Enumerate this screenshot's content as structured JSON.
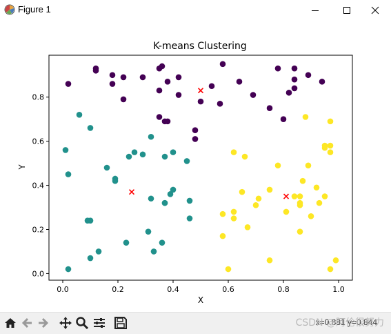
{
  "window": {
    "title": "Figure 1",
    "icon": "matplotlib-icon"
  },
  "titlebar_buttons": [
    "minimize-icon",
    "maximize-icon",
    "close-icon"
  ],
  "toolbar": {
    "buttons": [
      "home-icon",
      "back-icon",
      "forward-icon",
      "pan-icon",
      "zoom-icon",
      "configure-subplots-icon",
      "save-icon"
    ],
    "coordinate_readout": "x=0.881 y=0.844",
    "watermark": "CSDN @阿伦很努力"
  },
  "colors": {
    "purple": "#440154",
    "teal": "#21918c",
    "yellow": "#fde725",
    "centroid": "#ff0000"
  },
  "chart_data": {
    "type": "scatter",
    "title": "K-means Clustering",
    "xlabel": "X",
    "ylabel": "Y",
    "xlim": [
      -0.05,
      1.05
    ],
    "ylim": [
      -0.03,
      0.99
    ],
    "xticks": [
      "0.0",
      "0.2",
      "0.4",
      "0.6",
      "0.8",
      "1.0"
    ],
    "yticks": [
      "0.0",
      "0.2",
      "0.4",
      "0.6",
      "0.8"
    ],
    "grid": false,
    "series": [
      {
        "color": "#440154",
        "points": [
          [
            0.02,
            0.86
          ],
          [
            0.12,
            0.93
          ],
          [
            0.12,
            0.92
          ],
          [
            0.18,
            0.9
          ],
          [
            0.22,
            0.89
          ],
          [
            0.18,
            0.86
          ],
          [
            0.22,
            0.79
          ],
          [
            0.29,
            0.89
          ],
          [
            0.35,
            0.93
          ],
          [
            0.36,
            0.94
          ],
          [
            0.42,
            0.89
          ],
          [
            0.38,
            0.87
          ],
          [
            0.35,
            0.83
          ],
          [
            0.42,
            0.81
          ],
          [
            0.35,
            0.71
          ],
          [
            0.37,
            0.69
          ],
          [
            0.38,
            0.69
          ],
          [
            0.48,
            0.65
          ],
          [
            0.48,
            0.61
          ],
          [
            0.5,
            0.78
          ],
          [
            0.54,
            0.85
          ],
          [
            0.57,
            0.77
          ],
          [
            0.58,
            0.95
          ],
          [
            0.64,
            0.87
          ],
          [
            0.69,
            0.81
          ],
          [
            0.75,
            0.75
          ],
          [
            0.78,
            0.93
          ],
          [
            0.8,
            0.7
          ],
          [
            0.82,
            0.82
          ],
          [
            0.84,
            0.93
          ],
          [
            0.84,
            0.88
          ],
          [
            0.84,
            0.84
          ],
          [
            0.89,
            0.9
          ],
          [
            0.94,
            0.87
          ]
        ]
      },
      {
        "color": "#21918c",
        "points": [
          [
            0.01,
            0.56
          ],
          [
            0.06,
            0.72
          ],
          [
            0.1,
            0.66
          ],
          [
            0.02,
            0.45
          ],
          [
            0.16,
            0.48
          ],
          [
            0.19,
            0.43
          ],
          [
            0.19,
            0.42
          ],
          [
            0.24,
            0.53
          ],
          [
            0.26,
            0.55
          ],
          [
            0.29,
            0.54
          ],
          [
            0.32,
            0.62
          ],
          [
            0.37,
            0.53
          ],
          [
            0.4,
            0.55
          ],
          [
            0.45,
            0.51
          ],
          [
            0.4,
            0.38
          ],
          [
            0.39,
            0.36
          ],
          [
            0.37,
            0.32
          ],
          [
            0.37,
            0.32
          ],
          [
            0.32,
            0.34
          ],
          [
            0.46,
            0.33
          ],
          [
            0.46,
            0.25
          ],
          [
            0.09,
            0.24
          ],
          [
            0.1,
            0.24
          ],
          [
            0.13,
            0.1
          ],
          [
            0.1,
            0.07
          ],
          [
            0.02,
            0.02
          ],
          [
            0.23,
            0.14
          ],
          [
            0.31,
            0.19
          ],
          [
            0.33,
            0.1
          ],
          [
            0.36,
            0.14
          ]
        ]
      },
      {
        "color": "#fde725",
        "points": [
          [
            0.62,
            0.55
          ],
          [
            0.66,
            0.53
          ],
          [
            0.88,
            0.71
          ],
          [
            0.97,
            0.69
          ],
          [
            0.78,
            0.49
          ],
          [
            0.89,
            0.49
          ],
          [
            0.95,
            0.58
          ],
          [
            0.95,
            0.57
          ],
          [
            0.97,
            0.58
          ],
          [
            0.97,
            0.55
          ],
          [
            0.87,
            0.42
          ],
          [
            0.65,
            0.37
          ],
          [
            0.71,
            0.34
          ],
          [
            0.7,
            0.31
          ],
          [
            0.75,
            0.38
          ],
          [
            0.81,
            0.28
          ],
          [
            0.84,
            0.35
          ],
          [
            0.86,
            0.35
          ],
          [
            0.86,
            0.32
          ],
          [
            0.86,
            0.31
          ],
          [
            0.92,
            0.39
          ],
          [
            0.93,
            0.32
          ],
          [
            0.95,
            0.35
          ],
          [
            0.58,
            0.27
          ],
          [
            0.62,
            0.28
          ],
          [
            0.62,
            0.25
          ],
          [
            0.67,
            0.21
          ],
          [
            0.58,
            0.17
          ],
          [
            0.86,
            0.19
          ],
          [
            0.9,
            0.26
          ],
          [
            0.75,
            0.06
          ],
          [
            0.6,
            0.02
          ],
          [
            0.97,
            0.02
          ],
          [
            0.99,
            0.06
          ]
        ]
      }
    ],
    "centroids": [
      [
        0.5,
        0.83
      ],
      [
        0.25,
        0.37
      ],
      [
        0.81,
        0.35
      ]
    ]
  }
}
